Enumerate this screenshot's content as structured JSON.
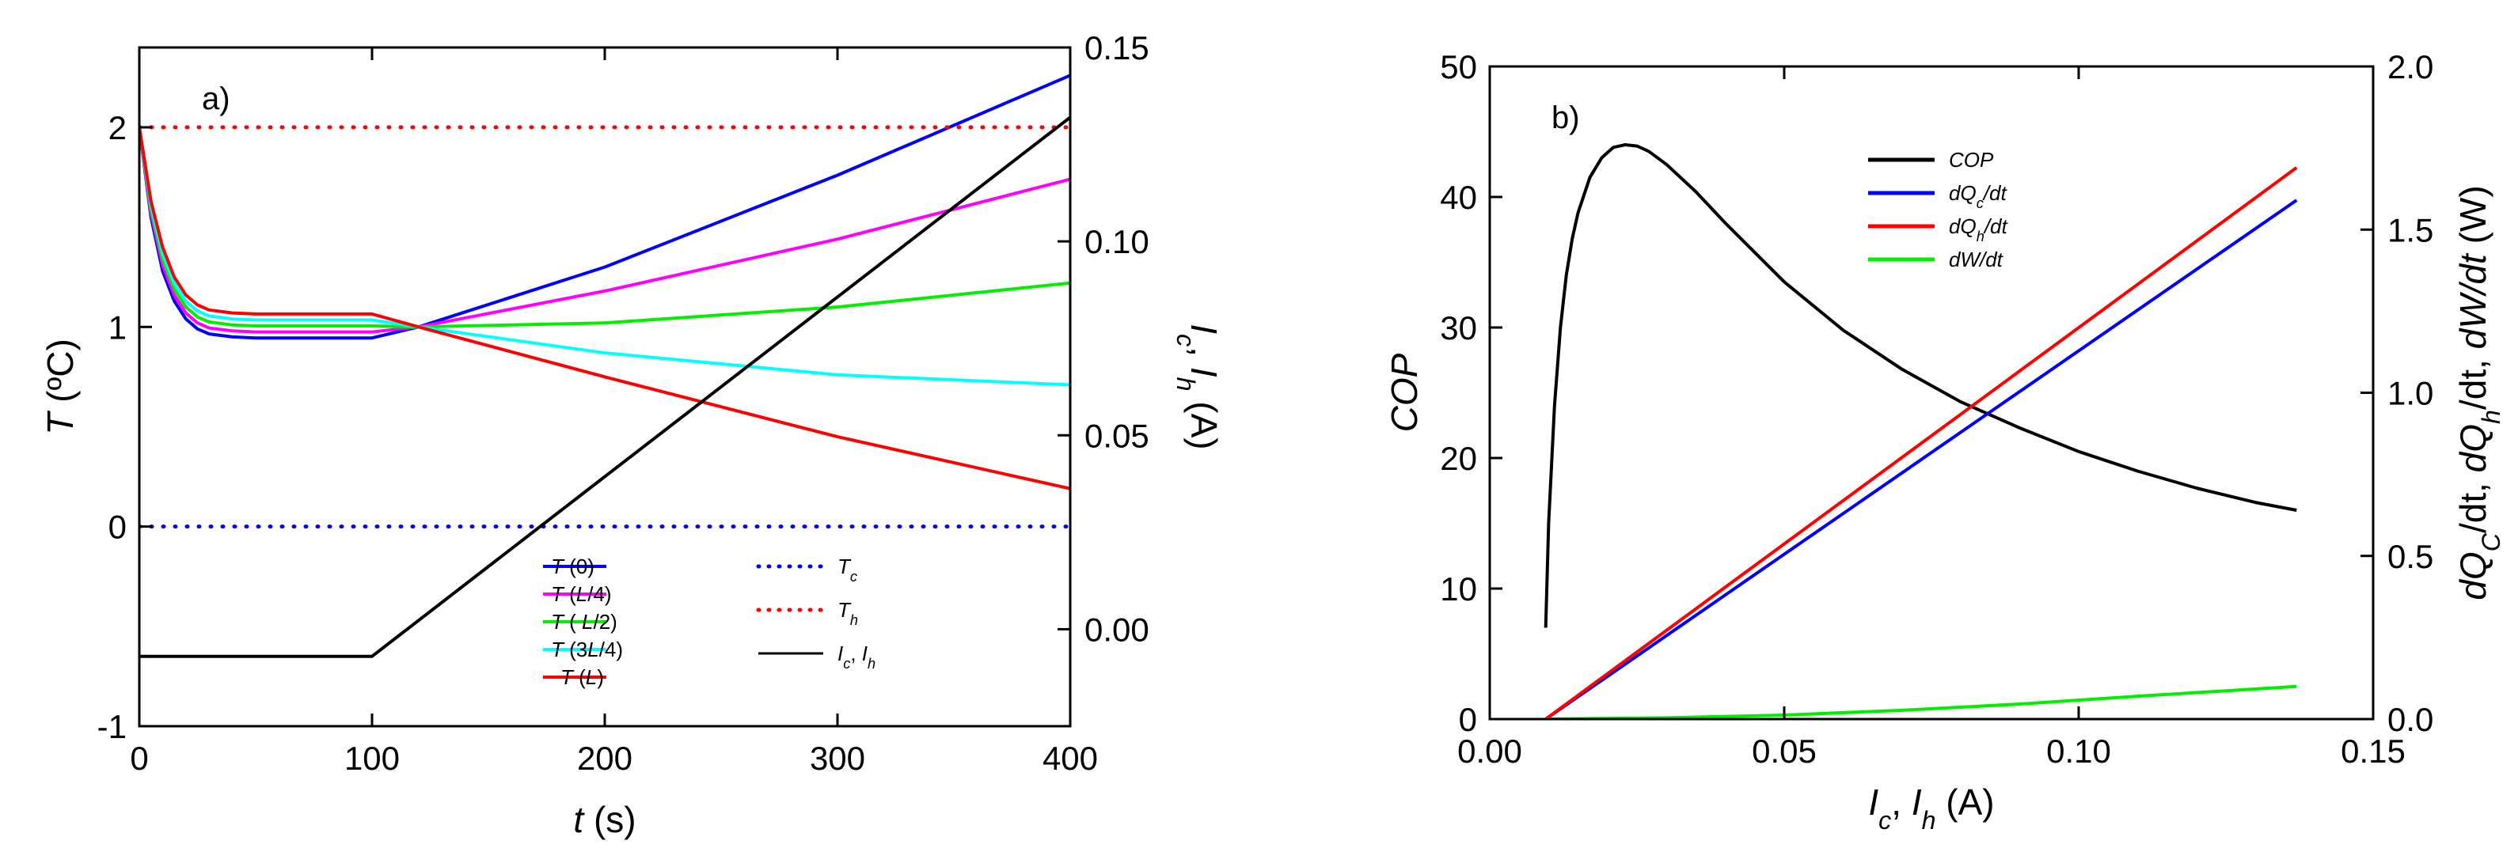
{
  "chart_data": [
    {
      "panel_label": "a)",
      "type": "line",
      "xlabel_sym": "t",
      "xlabel_unit": " (s)",
      "ylabel_sym": "T",
      "ylabel_unit": " (ºC)",
      "y2label_parts": [
        "I",
        "c",
        ", ",
        "I",
        "h",
        " (A)"
      ],
      "xlim": [
        0,
        400
      ],
      "ylim": [
        -1,
        2.4
      ],
      "y2lim": [
        -0.025,
        0.15
      ],
      "x_ticks": [
        "0",
        "100",
        "200",
        "300",
        "400"
      ],
      "y_ticks": [
        "-1",
        "0",
        "1",
        "2"
      ],
      "y2_ticks": [
        "0.00",
        "0.05",
        "0.10",
        "0.15"
      ],
      "legend_left": [
        {
          "sym": "T",
          "arg": " (0)",
          "color": "#0000ff",
          "style": "solid"
        },
        {
          "sym": "T",
          "arg": " (L/4)",
          "color": "#ff00ff",
          "style": "solid"
        },
        {
          "sym": "T",
          "arg": " ( L/2)",
          "color": "#00ee00",
          "style": "solid"
        },
        {
          "sym": "T",
          "arg": " (3L/4)",
          "color": "#00ffff",
          "style": "solid"
        },
        {
          "sym": "T",
          "arg": " (L)",
          "color": "#ff0000",
          "style": "solid"
        }
      ],
      "legend_right": [
        {
          "base": "T",
          "sub": "c",
          "color": "#0000ff",
          "style": "dotted"
        },
        {
          "base": "T",
          "sub": "h",
          "color": "#ff0000",
          "style": "dotted"
        },
        {
          "base": "I",
          "sub": "c",
          "sep": ", ",
          "base2": "I",
          "sub2": "h",
          "color": "#000000",
          "style": "solid"
        }
      ],
      "series": [
        {
          "name": "T(0)",
          "color": "#0000ff",
          "axis": "left",
          "points": [
            [
              0,
              2.0
            ],
            [
              5,
              1.55
            ],
            [
              10,
              1.28
            ],
            [
              15,
              1.13
            ],
            [
              20,
              1.04
            ],
            [
              25,
              0.99
            ],
            [
              30,
              0.965
            ],
            [
              40,
              0.95
            ],
            [
              50,
              0.945
            ],
            [
              100,
              0.945
            ],
            [
              120,
              1.0
            ],
            [
              200,
              1.3
            ],
            [
              300,
              1.76
            ],
            [
              400,
              2.26
            ]
          ]
        },
        {
          "name": "T(L/4)",
          "color": "#ff00ff",
          "axis": "left",
          "points": [
            [
              0,
              2.0
            ],
            [
              5,
              1.57
            ],
            [
              10,
              1.31
            ],
            [
              15,
              1.16
            ],
            [
              20,
              1.07
            ],
            [
              25,
              1.02
            ],
            [
              30,
              0.995
            ],
            [
              40,
              0.98
            ],
            [
              50,
              0.975
            ],
            [
              100,
              0.975
            ],
            [
              120,
              1.0
            ],
            [
              200,
              1.18
            ],
            [
              300,
              1.44
            ],
            [
              400,
              1.74
            ]
          ]
        },
        {
          "name": "T(L/2)",
          "color": "#00ee00",
          "axis": "left",
          "points": [
            [
              0,
              2.0
            ],
            [
              5,
              1.59
            ],
            [
              10,
              1.34
            ],
            [
              15,
              1.19
            ],
            [
              20,
              1.1
            ],
            [
              25,
              1.05
            ],
            [
              30,
              1.025
            ],
            [
              40,
              1.01
            ],
            [
              50,
              1.005
            ],
            [
              100,
              1.005
            ],
            [
              120,
              1.0
            ],
            [
              200,
              1.02
            ],
            [
              300,
              1.1
            ],
            [
              400,
              1.22
            ]
          ]
        },
        {
          "name": "T(3L/4)",
          "color": "#00ffff",
          "axis": "left",
          "points": [
            [
              0,
              2.0
            ],
            [
              5,
              1.61
            ],
            [
              10,
              1.37
            ],
            [
              15,
              1.22
            ],
            [
              20,
              1.13
            ],
            [
              25,
              1.08
            ],
            [
              30,
              1.055
            ],
            [
              40,
              1.04
            ],
            [
              50,
              1.035
            ],
            [
              100,
              1.035
            ],
            [
              120,
              1.0
            ],
            [
              200,
              0.87
            ],
            [
              300,
              0.76
            ],
            [
              400,
              0.71
            ]
          ]
        },
        {
          "name": "T(L)",
          "color": "#ff0000",
          "axis": "left",
          "points": [
            [
              0,
              2.0
            ],
            [
              5,
              1.63
            ],
            [
              10,
              1.4
            ],
            [
              15,
              1.25
            ],
            [
              20,
              1.16
            ],
            [
              25,
              1.11
            ],
            [
              30,
              1.085
            ],
            [
              40,
              1.07
            ],
            [
              50,
              1.065
            ],
            [
              100,
              1.065
            ],
            [
              120,
              1.0
            ],
            [
              200,
              0.75
            ],
            [
              300,
              0.45
            ],
            [
              400,
              0.19
            ]
          ]
        },
        {
          "name": "Tc",
          "color": "#0000ff",
          "axis": "left",
          "dotted": true,
          "points": [
            [
              0,
              0
            ],
            [
              400,
              0
            ]
          ]
        },
        {
          "name": "Th",
          "color": "#ff0000",
          "axis": "left",
          "dotted": true,
          "points": [
            [
              0,
              2
            ],
            [
              400,
              2
            ]
          ]
        },
        {
          "name": "Ic, Ih",
          "color": "#000000",
          "axis": "right",
          "points": [
            [
              0,
              -0.007
            ],
            [
              100,
              -0.007
            ],
            [
              400,
              0.132
            ]
          ]
        }
      ]
    },
    {
      "panel_label": "b)",
      "type": "line",
      "xlabel_parts": [
        "I",
        "c",
        ", ",
        "I",
        "h",
        " (A)"
      ],
      "ylabel": "COP",
      "y2label_parts": [
        "dQ",
        "C",
        "/dt, ",
        "dQ",
        "h",
        "/dt, ",
        "dW/dt",
        "",
        " (W)"
      ],
      "xlim": [
        0,
        0.15
      ],
      "ylim": [
        0,
        50
      ],
      "y2lim": [
        0,
        2.0
      ],
      "x_ticks": [
        "0.00",
        "0.05",
        "0.10",
        "0.15"
      ],
      "y_ticks": [
        "0",
        "10",
        "20",
        "30",
        "40",
        "50"
      ],
      "y2_ticks": [
        "0.0",
        "0.5",
        "1.0",
        "1.5",
        "2.0"
      ],
      "legend": [
        {
          "base": "COP",
          "sub": "",
          "tail": "",
          "color": "#000000"
        },
        {
          "base": "dQ",
          "sub": "c",
          "tail": "/dt",
          "color": "#0000ff"
        },
        {
          "base": "dQ",
          "sub": "h",
          "tail": "/dt",
          "color": "#ff0000"
        },
        {
          "base": "dW/dt",
          "sub": "",
          "tail": "",
          "color": "#00ee00"
        }
      ],
      "series": [
        {
          "name": "COP",
          "color": "#000000",
          "axis": "left",
          "points": [
            [
              0.0095,
              7
            ],
            [
              0.01,
              15
            ],
            [
              0.011,
              24
            ],
            [
              0.012,
              30
            ],
            [
              0.013,
              34
            ],
            [
              0.014,
              36.8
            ],
            [
              0.015,
              38.8
            ],
            [
              0.017,
              41.5
            ],
            [
              0.019,
              43
            ],
            [
              0.021,
              43.8
            ],
            [
              0.023,
              44
            ],
            [
              0.025,
              43.9
            ],
            [
              0.027,
              43.5
            ],
            [
              0.03,
              42.5
            ],
            [
              0.035,
              40.4
            ],
            [
              0.04,
              38
            ],
            [
              0.05,
              33.5
            ],
            [
              0.06,
              29.8
            ],
            [
              0.07,
              26.8
            ],
            [
              0.08,
              24.3
            ],
            [
              0.09,
              22.3
            ],
            [
              0.1,
              20.5
            ],
            [
              0.11,
              19
            ],
            [
              0.12,
              17.7
            ],
            [
              0.13,
              16.6
            ],
            [
              0.137,
              16
            ]
          ]
        },
        {
          "name": "dQc/dt",
          "color": "#0000ff",
          "axis": "right",
          "points": [
            [
              0.0095,
              0
            ],
            [
              0.137,
              1.59
            ]
          ]
        },
        {
          "name": "dQh/dt",
          "color": "#ff0000",
          "axis": "right",
          "points": [
            [
              0.0095,
              0
            ],
            [
              0.137,
              1.69
            ]
          ]
        },
        {
          "name": "dW/dt",
          "color": "#00ee00",
          "axis": "right",
          "points": [
            [
              0.0095,
              0
            ],
            [
              0.03,
              0.004
            ],
            [
              0.05,
              0.012
            ],
            [
              0.07,
              0.027
            ],
            [
              0.09,
              0.046
            ],
            [
              0.11,
              0.07
            ],
            [
              0.137,
              0.1
            ]
          ]
        }
      ]
    }
  ]
}
